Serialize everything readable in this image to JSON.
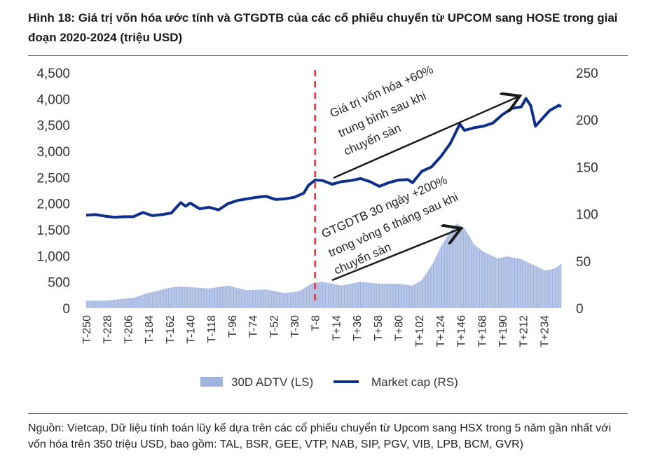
{
  "title": "Hình 18: Giá trị vốn hóa ước tính và GTGDTB của các cổ phiếu chuyển từ UPCOM sang HOSE trong giai đoạn 2020-2024 (triệu USD)",
  "footer": "Nguồn: Vietcap, Dữ liệu tính toán lũy kế dựa trên các cổ phiếu chuyển từ Upcom sang HSX trong 5 năm gần nhất với vốn hóa trên 350 triệu USD, bao gồm: TAL, BSR, GEE, VTP, NAB, SIP, PGV, VIB, LPB, BCM, GVR)",
  "chart_data": {
    "type": "bar+line",
    "x_unit": "trading day relative to listing (T)",
    "xlim": [
      -250,
      252
    ],
    "x_tick_labels": [
      "T-250",
      "T-228",
      "T-206",
      "T-184",
      "T-162",
      "T-140",
      "T-118",
      "T-96",
      "T-74",
      "T-52",
      "T-30",
      "T-8",
      "T+14",
      "T+36",
      "T+58",
      "T+80",
      "T+102",
      "T+124",
      "T+146",
      "T+168",
      "T+190",
      "T+212",
      "T+234"
    ],
    "left_axis": {
      "ylim": [
        0,
        4500
      ],
      "ticks": [
        "0",
        "500",
        "1,000",
        "1,500",
        "2,000",
        "2,500",
        "3,000",
        "3,500",
        "4,000",
        "4,500"
      ]
    },
    "right_axis": {
      "ylim": [
        0,
        250
      ],
      "ticks": [
        "0",
        "50",
        "100",
        "150",
        "200",
        "250"
      ]
    },
    "listing_marker_x": -8,
    "legend": {
      "placement": "bottom",
      "entries": [
        "30D ADTV (LS)",
        "Market cap (RS)"
      ]
    },
    "colors": {
      "bars": "#9fb3de",
      "line": "#0b2f8a",
      "marker": "#d9363e",
      "arrow": "#1a1a1a"
    },
    "series": [
      {
        "name": "30D ADTV (LS)",
        "type": "bar",
        "axis": "right",
        "x": [
          -250,
          -230,
          -200,
          -185,
          -160,
          -150,
          -120,
          -100,
          -80,
          -60,
          -40,
          -25,
          -10,
          0,
          20,
          40,
          60,
          80,
          95,
          105,
          115,
          125,
          135,
          142,
          150,
          160,
          170,
          185,
          195,
          210,
          225,
          235,
          245,
          252
        ],
        "values": [
          8,
          8,
          11,
          16,
          22,
          23,
          21,
          24,
          19,
          20,
          16,
          18,
          27,
          28,
          24,
          28,
          26,
          26,
          24,
          30,
          45,
          65,
          82,
          90,
          85,
          68,
          60,
          53,
          55,
          52,
          45,
          40,
          42,
          47
        ]
      },
      {
        "name": "Market cap (RS)",
        "type": "line",
        "axis": "left",
        "x": [
          -250,
          -240,
          -230,
          -220,
          -210,
          -200,
          -190,
          -180,
          -170,
          -160,
          -150,
          -145,
          -140,
          -130,
          -120,
          -110,
          -100,
          -90,
          -80,
          -70,
          -60,
          -50,
          -40,
          -30,
          -20,
          -15,
          -8,
          0,
          10,
          20,
          30,
          40,
          50,
          60,
          70,
          80,
          90,
          95,
          105,
          115,
          125,
          135,
          145,
          150,
          160,
          170,
          180,
          190,
          200,
          210,
          215,
          220,
          225,
          230,
          240,
          250,
          252
        ],
        "values": [
          1780,
          1790,
          1760,
          1740,
          1750,
          1750,
          1830,
          1770,
          1790,
          1820,
          2020,
          1950,
          2010,
          1900,
          1930,
          1880,
          2000,
          2060,
          2090,
          2120,
          2140,
          2080,
          2090,
          2120,
          2200,
          2350,
          2450,
          2440,
          2370,
          2420,
          2440,
          2480,
          2420,
          2330,
          2400,
          2450,
          2460,
          2400,
          2620,
          2700,
          2900,
          3150,
          3520,
          3400,
          3450,
          3480,
          3540,
          3700,
          3820,
          3850,
          4010,
          3870,
          3480,
          3580,
          3780,
          3880,
          3850
        ]
      }
    ],
    "annotations": [
      "Giá trị vốn hóa +60%",
      "trung bình sau khi",
      "chuyển sàn",
      "GTGDTB 30 ngày +200%",
      "trong vòng 6 tháng sau khi",
      "chuyển sàn"
    ]
  }
}
